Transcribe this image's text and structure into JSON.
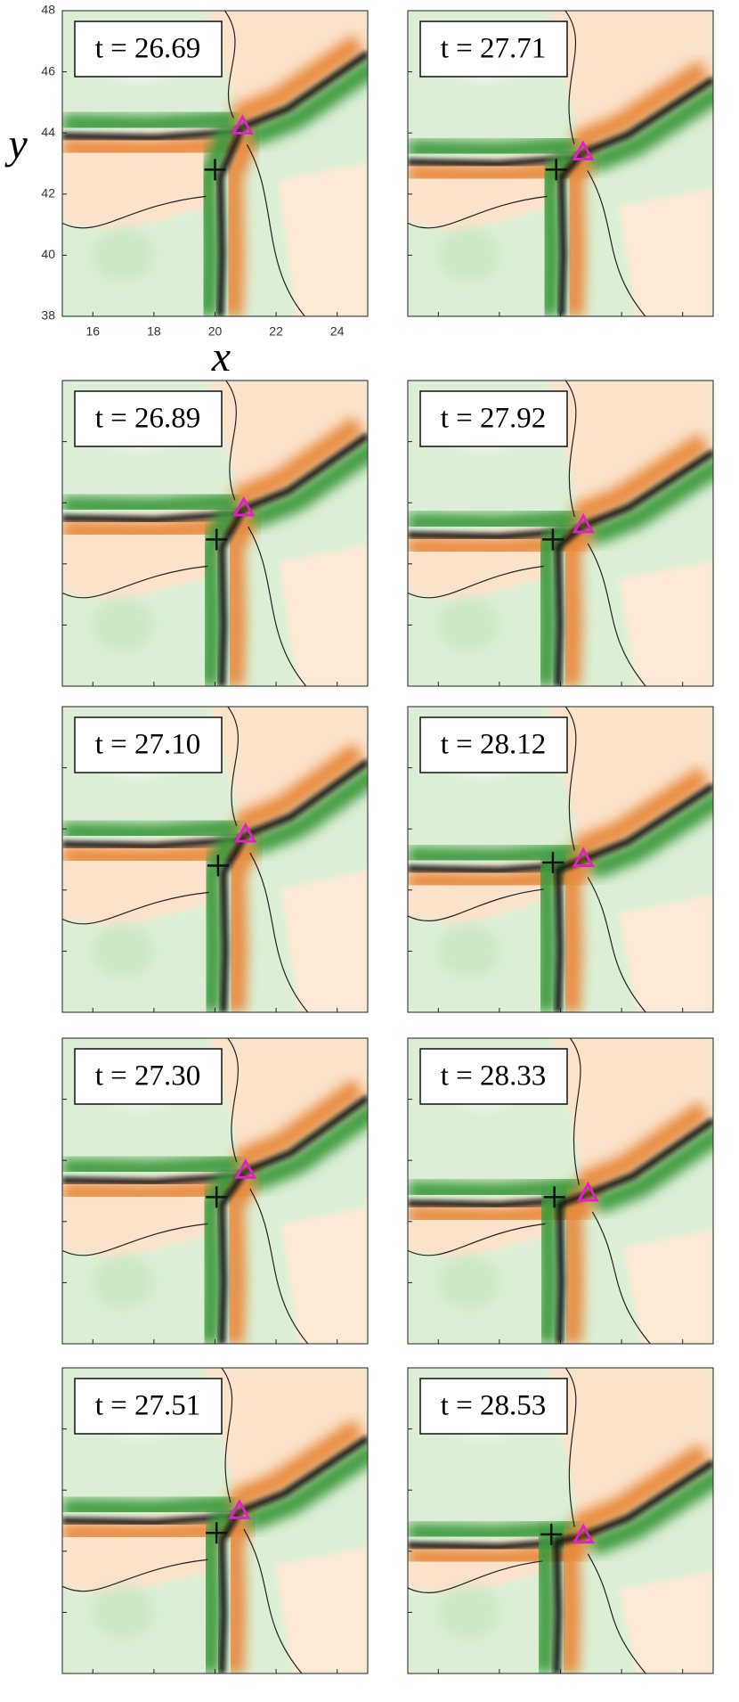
{
  "axes": {
    "x_label": "x",
    "y_label": "y",
    "xlim": [
      15,
      25
    ],
    "ylim": [
      38,
      48
    ],
    "xticks": [
      16,
      18,
      20,
      22,
      24
    ],
    "yticks": [
      38,
      40,
      42,
      44,
      46,
      48
    ]
  },
  "panels": [
    {
      "label": "t = 26.69",
      "plus": [
        20.0,
        42.8
      ],
      "triangle": [
        20.9,
        44.2
      ]
    },
    {
      "label": "t = 26.89",
      "plus": [
        20.05,
        42.8
      ],
      "triangle": [
        20.94,
        43.8
      ]
    },
    {
      "label": "t = 27.10",
      "plus": [
        20.1,
        42.8
      ],
      "triangle": [
        21.0,
        43.8
      ]
    },
    {
      "label": "t = 27.30",
      "plus": [
        20.05,
        42.8
      ],
      "triangle": [
        21.0,
        43.65
      ]
    },
    {
      "label": "t = 27.51",
      "plus": [
        20.05,
        42.6
      ],
      "triangle": [
        20.8,
        43.3
      ]
    },
    {
      "label": "t = 27.71",
      "plus": [
        19.86,
        42.8
      ],
      "triangle": [
        20.74,
        43.35
      ]
    },
    {
      "label": "t = 27.92",
      "plus": [
        19.75,
        42.8
      ],
      "triangle": [
        20.75,
        43.25
      ]
    },
    {
      "label": "t = 28.12",
      "plus": [
        19.75,
        42.9
      ],
      "triangle": [
        20.75,
        43.0
      ]
    },
    {
      "label": "t = 28.33",
      "plus": [
        19.8,
        42.8
      ],
      "triangle": [
        20.9,
        42.9
      ]
    },
    {
      "label": "t = 28.53",
      "plus": [
        19.7,
        42.55
      ],
      "triangle": [
        20.75,
        42.5
      ]
    }
  ]
}
